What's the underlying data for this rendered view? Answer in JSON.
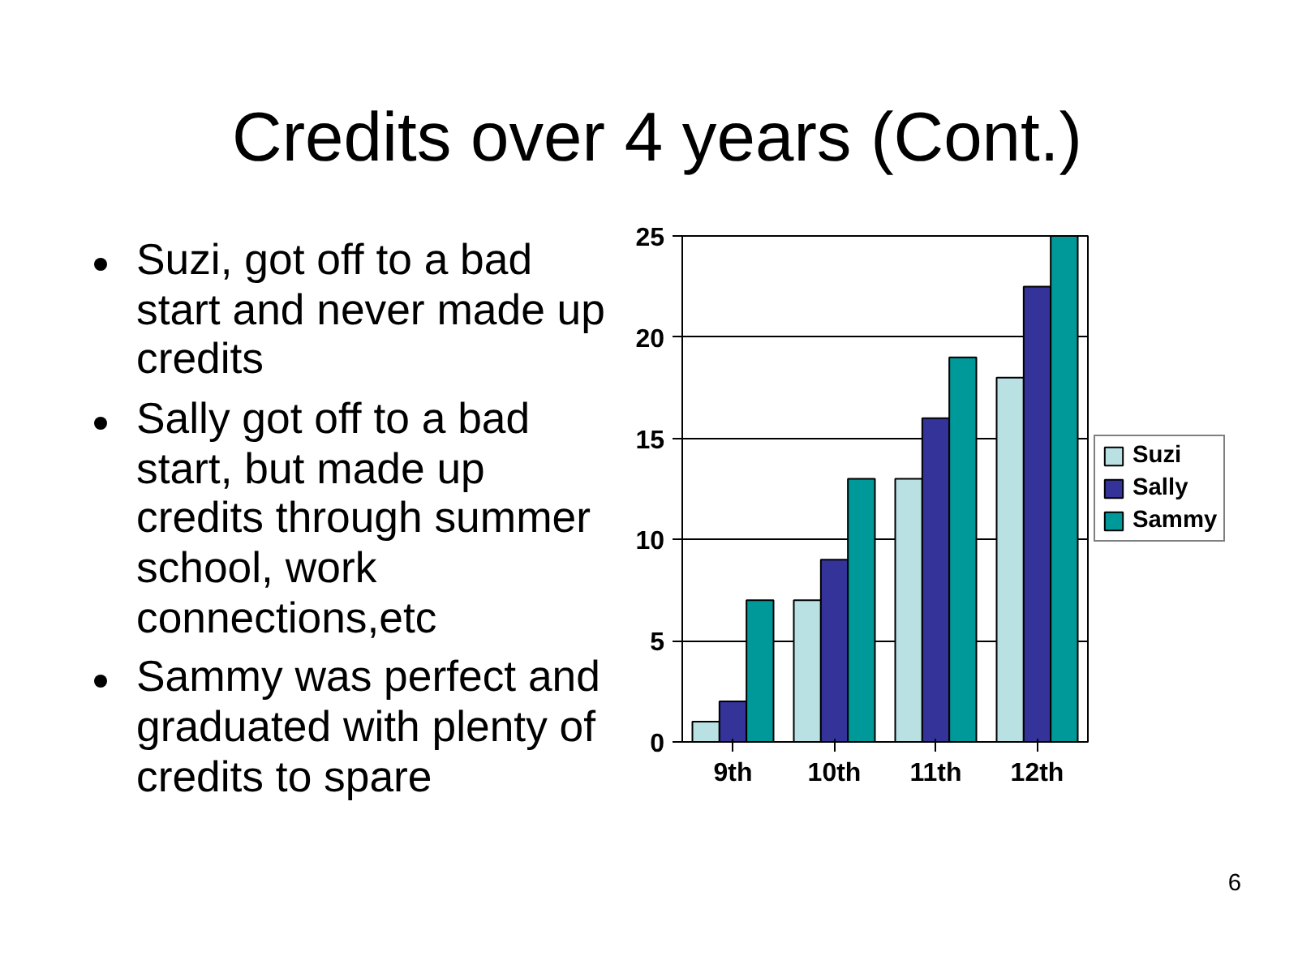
{
  "chart_data": {
    "type": "bar",
    "title": "Credits over 4 years (Cont.)",
    "categories": [
      "9th",
      "10th",
      "11th",
      "12th"
    ],
    "series": [
      {
        "name": "Suzi",
        "color": "#b9e0e3",
        "values": [
          1,
          7,
          13,
          18
        ]
      },
      {
        "name": "Sally",
        "color": "#333399",
        "values": [
          2,
          9,
          16,
          22.5
        ]
      },
      {
        "name": "Sammy",
        "color": "#009999",
        "values": [
          7,
          13,
          19,
          25
        ]
      }
    ],
    "ylim": [
      0,
      25
    ],
    "yticks": [
      0,
      5,
      10,
      15,
      20,
      25
    ],
    "grid": "y",
    "legend": "right",
    "annotations": [
      "Suzi, got off to a bad start and never made up credits",
      "Sally got off to a bad start, but made up credits through summer school, work connections,etc",
      "Sammy was perfect and graduated with plenty of credits to spare",
      "6"
    ]
  }
}
